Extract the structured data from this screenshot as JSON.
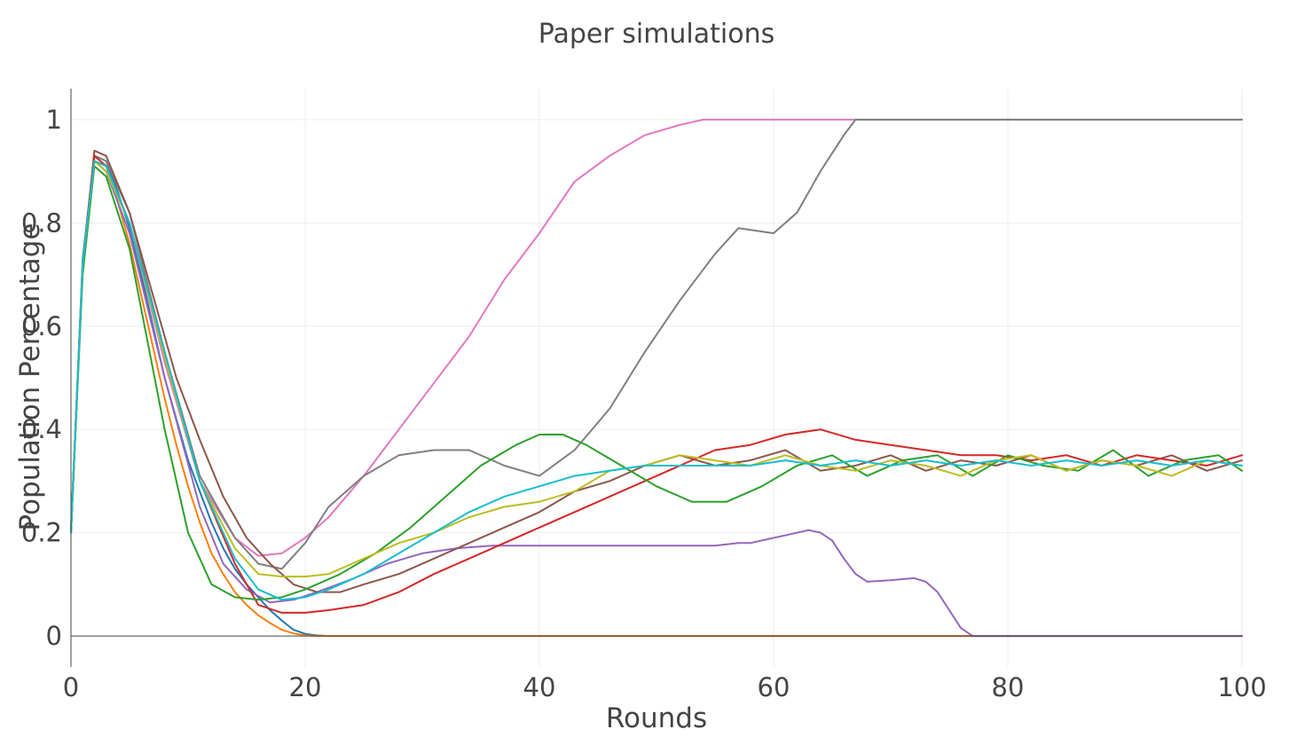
{
  "chart_data": {
    "type": "line",
    "title": "Paper simulations",
    "xlabel": "Rounds",
    "ylabel": "Population Percentage",
    "xlim": [
      0,
      100
    ],
    "ylim": [
      -0.06,
      1.06
    ],
    "xticks": [
      0,
      20,
      40,
      60,
      80,
      100
    ],
    "yticks": [
      0,
      0.2,
      0.4,
      0.6,
      0.8,
      1
    ],
    "ytick_labels": [
      "0",
      "0.2",
      "0.4",
      "0.6",
      "0.8",
      "1"
    ],
    "grid": true,
    "legend": "none",
    "series": [
      {
        "color": "#1f77b4",
        "x": [
          0,
          1,
          2,
          3,
          4,
          5,
          6,
          7,
          8,
          9,
          10,
          11,
          12,
          13,
          14,
          15,
          16,
          17,
          18,
          19,
          20,
          21,
          22,
          23,
          24,
          30,
          40,
          50,
          60,
          70,
          80,
          90,
          100
        ],
        "y": [
          0.2,
          0.73,
          0.93,
          0.92,
          0.86,
          0.79,
          0.7,
          0.6,
          0.5,
          0.42,
          0.34,
          0.28,
          0.22,
          0.17,
          0.13,
          0.1,
          0.075,
          0.05,
          0.03,
          0.012,
          0.004,
          0.001,
          0,
          0,
          0,
          0,
          0,
          0,
          0,
          0,
          0,
          0,
          0
        ]
      },
      {
        "color": "#ff7f0e",
        "x": [
          0,
          1,
          2,
          3,
          4,
          5,
          6,
          7,
          8,
          9,
          10,
          11,
          12,
          13,
          14,
          15,
          16,
          17,
          18,
          19,
          20,
          21,
          22,
          23,
          24,
          30,
          40,
          50,
          60,
          70,
          80,
          90,
          100
        ],
        "y": [
          0.21,
          0.72,
          0.92,
          0.9,
          0.84,
          0.76,
          0.66,
          0.56,
          0.46,
          0.37,
          0.29,
          0.22,
          0.16,
          0.12,
          0.085,
          0.06,
          0.04,
          0.025,
          0.012,
          0.005,
          0.001,
          0,
          0,
          0,
          0,
          0,
          0,
          0,
          0,
          0,
          0,
          0,
          0
        ]
      },
      {
        "color": "#9467bd",
        "x": [
          0,
          1,
          2,
          3,
          5,
          8,
          11,
          13,
          15,
          17,
          19,
          21,
          24,
          27,
          30,
          33,
          36,
          40,
          43,
          46,
          50,
          52,
          55,
          57,
          58,
          59,
          60,
          61,
          62,
          63,
          64,
          65,
          66,
          67,
          68,
          70,
          71,
          72,
          73,
          74,
          75,
          76,
          77,
          78,
          80,
          90,
          100
        ],
        "y": [
          0.2,
          0.72,
          0.92,
          0.9,
          0.78,
          0.5,
          0.25,
          0.14,
          0.09,
          0.065,
          0.07,
          0.085,
          0.11,
          0.14,
          0.16,
          0.17,
          0.175,
          0.175,
          0.175,
          0.175,
          0.175,
          0.175,
          0.175,
          0.18,
          0.18,
          0.185,
          0.19,
          0.195,
          0.2,
          0.205,
          0.2,
          0.185,
          0.15,
          0.12,
          0.105,
          0.108,
          0.11,
          0.112,
          0.105,
          0.085,
          0.05,
          0.015,
          0,
          0,
          0,
          0,
          0
        ]
      },
      {
        "color": "#e377c2",
        "x": [
          0,
          1,
          2,
          3,
          5,
          8,
          11,
          14,
          16,
          18,
          20,
          22,
          25,
          28,
          31,
          34,
          37,
          40,
          43,
          46,
          49,
          52,
          54,
          56,
          60,
          66,
          100
        ],
        "y": [
          0.2,
          0.72,
          0.92,
          0.91,
          0.8,
          0.53,
          0.3,
          0.19,
          0.155,
          0.16,
          0.19,
          0.23,
          0.31,
          0.4,
          0.49,
          0.58,
          0.69,
          0.78,
          0.88,
          0.93,
          0.97,
          0.99,
          1,
          1,
          1,
          1,
          1
        ]
      },
      {
        "color": "#7f7f7f",
        "x": [
          0,
          1,
          2,
          3,
          5,
          8,
          11,
          14,
          16,
          18,
          20,
          22,
          25,
          28,
          31,
          34,
          37,
          40,
          43,
          46,
          49,
          52,
          55,
          57,
          60,
          62,
          64,
          66,
          67,
          70,
          100
        ],
        "y": [
          0.2,
          0.72,
          0.93,
          0.92,
          0.82,
          0.55,
          0.31,
          0.19,
          0.14,
          0.13,
          0.18,
          0.25,
          0.31,
          0.35,
          0.36,
          0.36,
          0.33,
          0.31,
          0.36,
          0.44,
          0.55,
          0.65,
          0.74,
          0.79,
          0.78,
          0.82,
          0.9,
          0.97,
          1,
          1,
          1
        ]
      },
      {
        "color": "#8c564b",
        "x": [
          0,
          1,
          2,
          3,
          5,
          7,
          9,
          11,
          13,
          15,
          17,
          19,
          21,
          23,
          25,
          28,
          31,
          34,
          37,
          40,
          43,
          46,
          49,
          52,
          55,
          58,
          61,
          64,
          67,
          70,
          73,
          76,
          79,
          82,
          85,
          88,
          91,
          94,
          97,
          100
        ],
        "y": [
          0.2,
          0.72,
          0.94,
          0.93,
          0.82,
          0.66,
          0.5,
          0.38,
          0.27,
          0.19,
          0.14,
          0.1,
          0.085,
          0.085,
          0.1,
          0.12,
          0.15,
          0.18,
          0.21,
          0.24,
          0.28,
          0.3,
          0.33,
          0.35,
          0.33,
          0.34,
          0.36,
          0.32,
          0.33,
          0.35,
          0.32,
          0.34,
          0.33,
          0.35,
          0.32,
          0.34,
          0.33,
          0.35,
          0.32,
          0.34
        ]
      },
      {
        "color": "#d62728",
        "x": [
          0,
          1,
          2,
          3,
          5,
          8,
          11,
          14,
          16,
          18,
          20,
          22,
          25,
          28,
          31,
          34,
          37,
          40,
          43,
          46,
          49,
          52,
          55,
          58,
          61,
          64,
          67,
          70,
          73,
          76,
          79,
          82,
          85,
          88,
          91,
          94,
          97,
          100
        ],
        "y": [
          0.2,
          0.72,
          0.93,
          0.91,
          0.8,
          0.55,
          0.3,
          0.14,
          0.06,
          0.045,
          0.045,
          0.05,
          0.06,
          0.085,
          0.12,
          0.15,
          0.18,
          0.21,
          0.24,
          0.27,
          0.3,
          0.33,
          0.36,
          0.37,
          0.39,
          0.4,
          0.38,
          0.37,
          0.36,
          0.35,
          0.35,
          0.34,
          0.35,
          0.33,
          0.35,
          0.34,
          0.33,
          0.35
        ]
      },
      {
        "color": "#2ca02c",
        "x": [
          0,
          1,
          2,
          3,
          5,
          8,
          10,
          12,
          14,
          16,
          18,
          20,
          23,
          26,
          29,
          32,
          35,
          38,
          40,
          42,
          44,
          47,
          50,
          53,
          56,
          59,
          62,
          65,
          68,
          71,
          74,
          77,
          80,
          83,
          86,
          89,
          92,
          95,
          98,
          100
        ],
        "y": [
          0.2,
          0.7,
          0.91,
          0.89,
          0.75,
          0.4,
          0.2,
          0.1,
          0.075,
          0.07,
          0.075,
          0.09,
          0.12,
          0.16,
          0.21,
          0.27,
          0.33,
          0.37,
          0.39,
          0.39,
          0.37,
          0.33,
          0.29,
          0.26,
          0.26,
          0.29,
          0.33,
          0.35,
          0.31,
          0.34,
          0.35,
          0.31,
          0.35,
          0.33,
          0.32,
          0.36,
          0.31,
          0.34,
          0.35,
          0.32
        ]
      },
      {
        "color": "#bcbd22",
        "x": [
          0,
          1,
          2,
          3,
          5,
          8,
          11,
          14,
          16,
          18,
          20,
          22,
          25,
          28,
          31,
          34,
          37,
          40,
          43,
          46,
          49,
          52,
          55,
          58,
          61,
          64,
          67,
          70,
          73,
          76,
          79,
          82,
          85,
          88,
          91,
          94,
          97,
          100
        ],
        "y": [
          0.2,
          0.72,
          0.92,
          0.9,
          0.8,
          0.54,
          0.3,
          0.17,
          0.12,
          0.115,
          0.115,
          0.12,
          0.15,
          0.18,
          0.2,
          0.23,
          0.25,
          0.26,
          0.28,
          0.32,
          0.33,
          0.35,
          0.34,
          0.33,
          0.35,
          0.33,
          0.32,
          0.34,
          0.33,
          0.31,
          0.34,
          0.35,
          0.32,
          0.34,
          0.33,
          0.31,
          0.34,
          0.33
        ]
      },
      {
        "color": "#17becf",
        "x": [
          0,
          1,
          2,
          3,
          5,
          8,
          11,
          14,
          16,
          18,
          20,
          22,
          25,
          28,
          31,
          34,
          37,
          40,
          43,
          46,
          49,
          52,
          55,
          58,
          61,
          64,
          67,
          70,
          73,
          76,
          79,
          82,
          85,
          88,
          91,
          94,
          97,
          100
        ],
        "y": [
          0.2,
          0.72,
          0.92,
          0.91,
          0.8,
          0.55,
          0.3,
          0.15,
          0.09,
          0.07,
          0.075,
          0.09,
          0.12,
          0.16,
          0.2,
          0.24,
          0.27,
          0.29,
          0.31,
          0.32,
          0.33,
          0.33,
          0.33,
          0.33,
          0.34,
          0.33,
          0.34,
          0.33,
          0.34,
          0.33,
          0.34,
          0.33,
          0.34,
          0.33,
          0.34,
          0.33,
          0.34,
          0.33
        ]
      }
    ]
  }
}
